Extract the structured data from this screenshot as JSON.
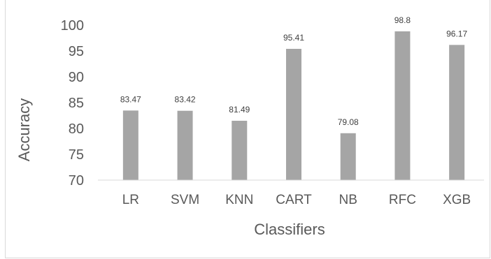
{
  "chart_data": {
    "type": "bar",
    "title": "",
    "xlabel": "Classifiers",
    "ylabel": "Accuracy",
    "categories": [
      "LR",
      "SVM",
      "KNN",
      "CART",
      "NB",
      "RFC",
      "XGB"
    ],
    "values": [
      83.47,
      83.42,
      81.49,
      95.41,
      79.08,
      98.8,
      96.17
    ],
    "data_labels": [
      "83.47",
      "83.42",
      "81.49",
      "95.41",
      "79.08",
      "98.8",
      "96.17"
    ],
    "ylim": [
      70,
      100
    ],
    "yticks": [
      70,
      75,
      80,
      85,
      90,
      95,
      100
    ],
    "grid": false,
    "legend": "none",
    "colors": {
      "bar": "#a5a5a5",
      "axis": "#d9d9d9",
      "text": "#595959"
    }
  }
}
